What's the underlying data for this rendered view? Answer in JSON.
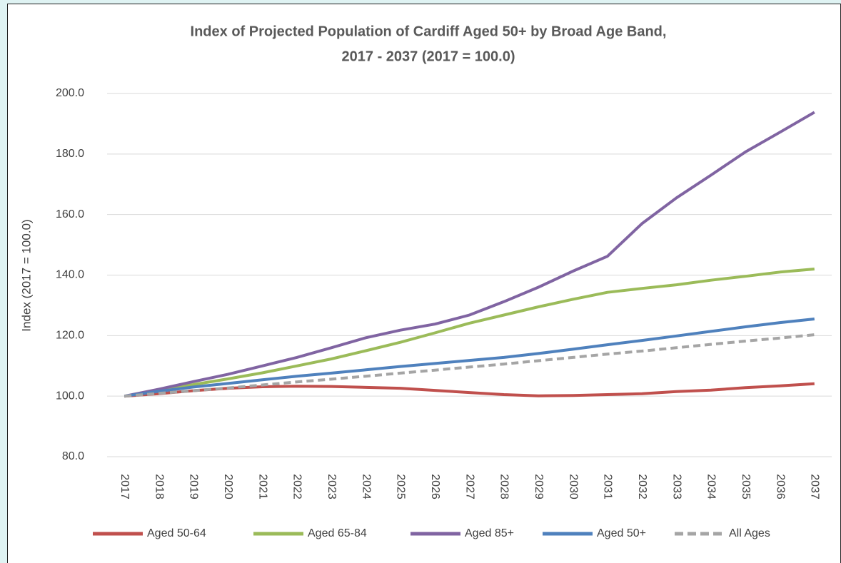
{
  "chart_data": {
    "type": "line",
    "title": [
      "Index of Projected Population of Cardiff Aged 50+ by Broad Age Band,",
      "2017 - 2037 (2017 = 100.0)"
    ],
    "y_label": "Index (2017 = 100.0)",
    "categories": [
      "2017",
      "2018",
      "2019",
      "2020",
      "2021",
      "2022",
      "2023",
      "2024",
      "2025",
      "2026",
      "2027",
      "2028",
      "2029",
      "2030",
      "2031",
      "2032",
      "2033",
      "2034",
      "2035",
      "2036",
      "2037"
    ],
    "ylim": [
      80,
      200
    ],
    "yticks": [
      {
        "value": 80,
        "label": "80.0"
      },
      {
        "value": 100,
        "label": "100.0"
      },
      {
        "value": 120,
        "label": "120.0"
      },
      {
        "value": 140,
        "label": "140.0"
      },
      {
        "value": 160,
        "label": "160.0"
      },
      {
        "value": 180,
        "label": "180.0"
      },
      {
        "value": 200,
        "label": "200.0"
      }
    ],
    "grid": true,
    "legend": "bottom",
    "series": [
      {
        "name": "Aged 50-64",
        "color": "#c0504d",
        "values": [
          100,
          100.8,
          101.8,
          102.6,
          103.1,
          103.3,
          103.2,
          102.9,
          102.6,
          101.9,
          101.2,
          100.5,
          100.1,
          100.2,
          100.5,
          100.8,
          101.5,
          102.0,
          102.8,
          103.4,
          104.1
        ]
      },
      {
        "name": "Aged 65-84",
        "color": "#9bbb59",
        "values": [
          100,
          101.8,
          103.8,
          105.7,
          107.7,
          110.0,
          112.3,
          115.0,
          117.8,
          120.9,
          124.1,
          126.8,
          129.5,
          132.0,
          134.3,
          135.6,
          136.8,
          138.3,
          139.6,
          141.0,
          142.0
        ]
      },
      {
        "name": "Aged 85+",
        "color": "#8064a2",
        "values": [
          100,
          102.3,
          104.8,
          107.2,
          110.0,
          112.8,
          116.0,
          119.3,
          121.8,
          123.8,
          126.8,
          131.2,
          136.0,
          141.3,
          146.2,
          157.0,
          165.5,
          173.0,
          180.7,
          187.2,
          193.8
        ]
      },
      {
        "name": "Aged 50+",
        "color": "#4f81bd",
        "values": [
          100,
          101.6,
          103.0,
          104.2,
          105.4,
          106.6,
          107.6,
          108.7,
          109.8,
          110.8,
          111.8,
          112.8,
          114.1,
          115.5,
          117.0,
          118.4,
          119.9,
          121.4,
          122.9,
          124.3,
          125.5
        ]
      },
      {
        "name": "All Ages",
        "color": "#a5a5a5",
        "dashed": true,
        "values": [
          100,
          100.9,
          101.8,
          102.7,
          103.7,
          104.7,
          105.6,
          106.6,
          107.6,
          108.6,
          109.6,
          110.6,
          111.7,
          112.8,
          113.9,
          114.9,
          116.0,
          117.1,
          118.2,
          119.2,
          120.3
        ]
      }
    ]
  }
}
